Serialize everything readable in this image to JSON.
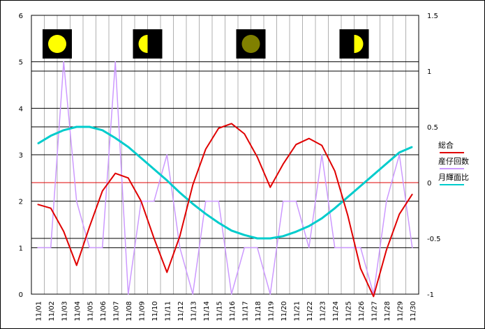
{
  "chart_data": {
    "type": "line",
    "categories": [
      "11/01",
      "11/02",
      "11/03",
      "11/04",
      "11/05",
      "11/06",
      "11/07",
      "11/08",
      "11/09",
      "11/10",
      "11/11",
      "11/12",
      "11/13",
      "11/14",
      "11/15",
      "11/16",
      "11/17",
      "11/18",
      "11/19",
      "11/20",
      "11/21",
      "11/22",
      "11/23",
      "11/24",
      "11/25",
      "11/26",
      "11/27",
      "11/28",
      "11/29",
      "11/30"
    ],
    "ylim_left": [
      0,
      6
    ],
    "ylim_right": [
      -1,
      1.5
    ],
    "left_ticks": [
      "0",
      "1",
      "2",
      "3",
      "4",
      "5",
      "6"
    ],
    "right_ticks": [
      "-1",
      "-0.5",
      "0",
      "0.5",
      "1",
      "1.5"
    ],
    "grid": true,
    "legend_position": "right",
    "series": [
      {
        "name": "総合",
        "axis": "left",
        "color": "#e00000",
        "values": [
          1.93,
          1.85,
          1.35,
          0.62,
          1.45,
          2.22,
          2.6,
          2.5,
          2.0,
          1.2,
          0.47,
          1.25,
          2.35,
          3.12,
          3.57,
          3.67,
          3.45,
          2.95,
          2.3,
          2.8,
          3.22,
          3.35,
          3.2,
          2.65,
          1.7,
          0.55,
          -0.05,
          0.95,
          1.72,
          2.15
        ]
      },
      {
        "name": "産仔回数",
        "axis": "left",
        "color": "#cc99ff",
        "values": [
          1,
          1,
          5,
          2,
          1,
          1,
          5,
          0,
          2,
          2,
          3,
          1,
          0,
          2,
          2,
          0,
          1,
          1,
          0,
          2,
          2,
          1,
          3,
          1,
          1,
          1,
          0,
          2,
          3,
          1
        ]
      },
      {
        "name": "月輝面比",
        "axis": "right",
        "color": "#00cccc",
        "values": [
          0.35,
          0.42,
          0.47,
          0.5,
          0.5,
          0.47,
          0.4,
          0.32,
          0.22,
          0.12,
          0.02,
          -0.09,
          -0.19,
          -0.28,
          -0.36,
          -0.43,
          -0.47,
          -0.5,
          -0.5,
          -0.48,
          -0.44,
          -0.39,
          -0.32,
          -0.23,
          -0.13,
          -0.03,
          0.07,
          0.17,
          0.27,
          0.32
        ]
      }
    ],
    "moon_phases": [
      {
        "category": "11/02",
        "phase": "full-moon-icon"
      },
      {
        "category": "11/09",
        "phase": "first-quarter-moon-icon"
      },
      {
        "category": "11/17",
        "phase": "new-moon-icon"
      },
      {
        "category": "11/25",
        "phase": "last-quarter-moon-icon"
      }
    ],
    "colors": {
      "background": "#ffffff",
      "frame": "#000000",
      "vgrid": "#b0b0b0",
      "hgrid": "#000000",
      "refline": "#e00000",
      "moon_bg": "#000000",
      "moon_lit": "#ffff00",
      "moon_new": "#808000"
    }
  }
}
